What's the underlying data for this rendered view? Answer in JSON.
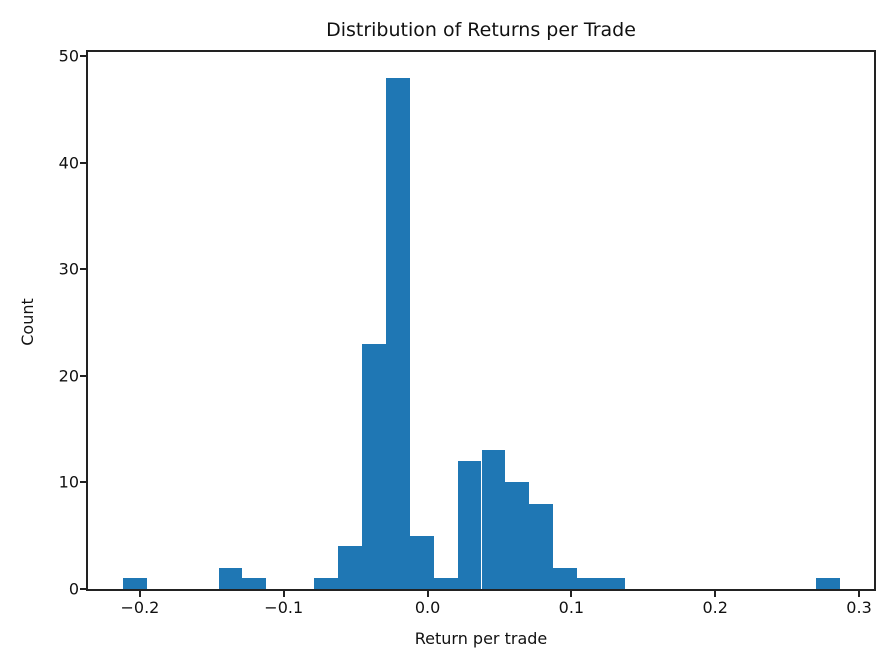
{
  "chart_data": {
    "type": "bar",
    "subtype": "histogram",
    "title": "Distribution of Returns per Trade",
    "xlabel": "Return per trade",
    "ylabel": "Count",
    "bar_color": "#1f77b4",
    "axis_color": "#222222",
    "background_color": "#ffffff",
    "bin_start": -0.2118,
    "bin_width": 0.01662,
    "counts": [
      1,
      0,
      0,
      0,
      2,
      1,
      0,
      0,
      1,
      4,
      23,
      48,
      5,
      1,
      12,
      13,
      10,
      8,
      2,
      1,
      1,
      0,
      0,
      0,
      0,
      0,
      0,
      0,
      0,
      1
    ],
    "xlim": [
      -0.2361,
      0.3104
    ],
    "ylim": [
      0,
      50.4
    ],
    "xticks": [
      -0.2,
      -0.1,
      0.0,
      0.1,
      0.2,
      0.3
    ],
    "xtick_labels": [
      "−0.2",
      "−0.1",
      "0.0",
      "0.1",
      "0.2",
      "0.3"
    ],
    "yticks": [
      0,
      10,
      20,
      30,
      40,
      50
    ],
    "ytick_labels": [
      "0",
      "10",
      "20",
      "30",
      "40",
      "50"
    ],
    "grid": false,
    "legend": null
  }
}
